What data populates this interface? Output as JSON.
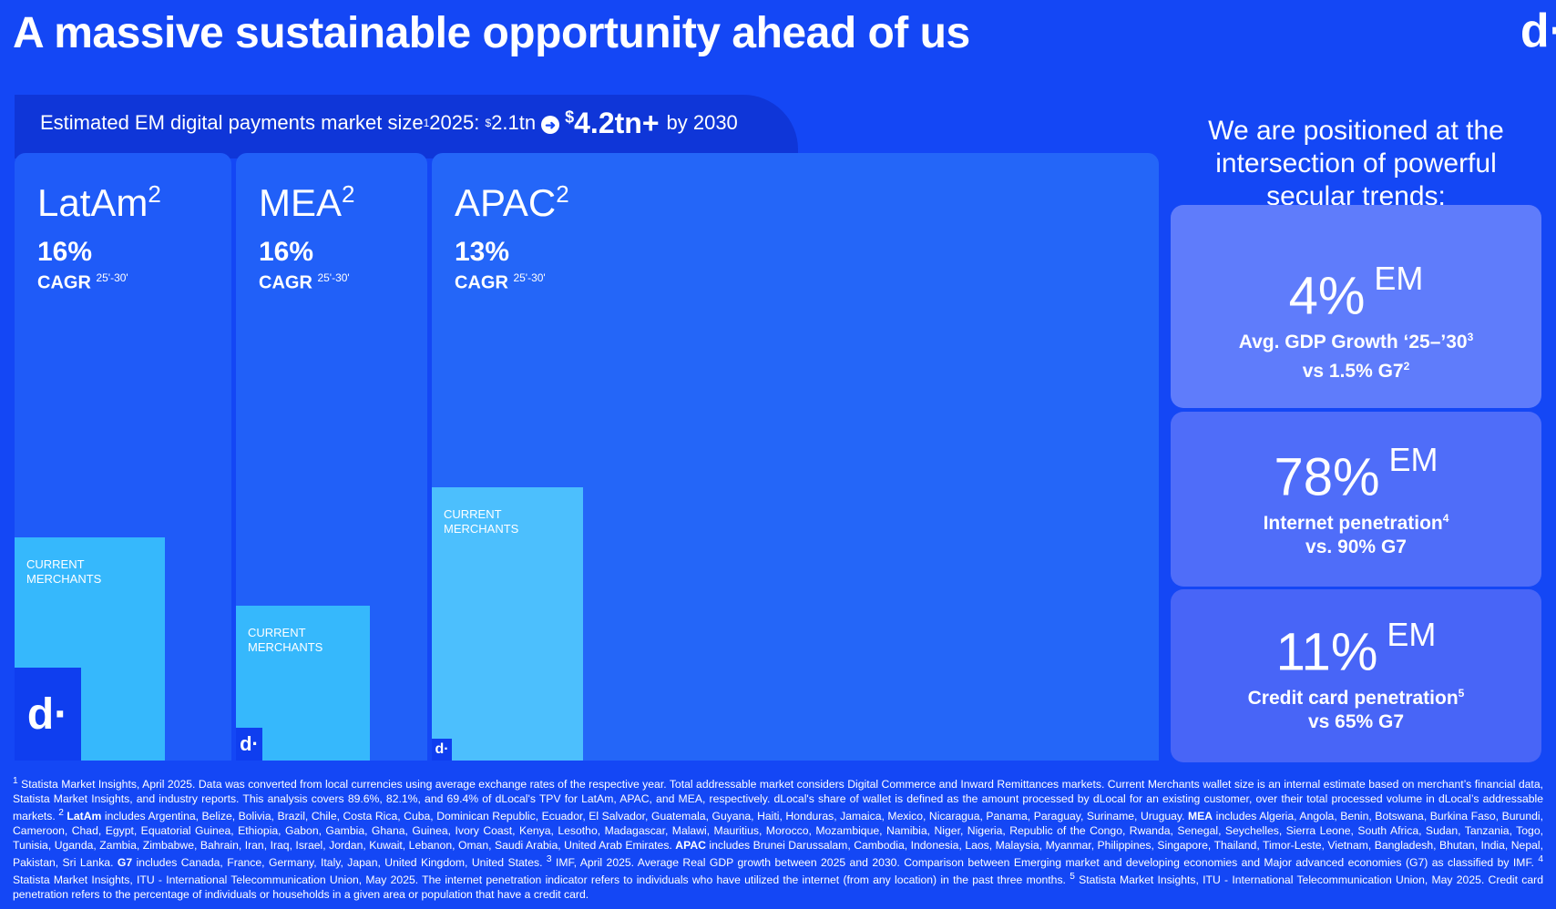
{
  "page": {
    "title": "A massive sustainable opportunity ahead of us",
    "logo": "d·"
  },
  "market": {
    "label": "Estimated EM digital payments market size",
    "label_sup": "1",
    "year": "2025:",
    "value_2025_sup": "$",
    "value_2025": "2.1tn",
    "arrow_icon": "arrow-right-circle-icon",
    "value_2030_sup": "$",
    "value_2030": "4.2tn+",
    "by_year": "by 2030"
  },
  "regions": [
    {
      "name": "LatAm",
      "name_sup": "2",
      "cagr": "16%",
      "cagr_label": "CAGR",
      "cagr_sup": "25'-30'",
      "merchants_label": "CURRENT MERCHANTS",
      "dlocal_logo": "d·"
    },
    {
      "name": "MEA",
      "name_sup": "2",
      "cagr": "16%",
      "cagr_label": "CAGR",
      "cagr_sup": "25'-30'",
      "merchants_label": "CURRENT MERCHANTS",
      "dlocal_logo": "d·"
    },
    {
      "name": "APAC",
      "name_sup": "2",
      "cagr": "13%",
      "cagr_label": "CAGR",
      "cagr_sup": "25'-30'",
      "merchants_label": "CURRENT MERCHANTS",
      "dlocal_logo": "d·"
    }
  ],
  "trends": {
    "heading": "We are positioned at the intersection of powerful secular trends:",
    "cards": [
      {
        "value": "4%",
        "qualifier": "EM",
        "line1": "Avg. GDP Growth ‘25–’30",
        "line1_sup": "3",
        "line2": "vs 1.5% G7",
        "line2_sup": "2"
      },
      {
        "value": "78%",
        "qualifier": "EM",
        "line1": "Internet penetration",
        "line1_sup": "4",
        "line2": "vs. 90% G7",
        "line2_sup": ""
      },
      {
        "value": "11%",
        "qualifier": "EM",
        "line1": "Credit card penetration",
        "line1_sup": "5",
        "line2": "vs 65% G7",
        "line2_sup": ""
      }
    ]
  },
  "footnote": {
    "n1": "1",
    "p1": " Statista Market Insights, April 2025. Data was converted from local currencies using average exchange rates of the respective year. Total addressable market considers Digital Commerce and Inward Remittances markets. Current Merchants wallet size is an internal estimate based on merchant’s financial data, Statista Market Insights, and industry reports. This analysis covers 89.6%, 82.1%, and 69.4% of dLocal's TPV for LatAm, APAC, and MEA, respectively. dLocal's share of wallet is defined as the amount processed by dLocal for an existing customer, over their total processed volume in dLocal’s addressable markets. ",
    "n2": "2",
    "latam_label": " LatAm",
    "latam_text": " includes Argentina, Belize, Bolivia, Brazil, Chile, Costa Rica, Cuba, Dominican Republic, Ecuador, El Salvador, Guatemala, Guyana, Haiti, Honduras, Jamaica, Mexico, Nicaragua, Panama, Paraguay, Suriname, Uruguay. ",
    "mea_label": "MEA",
    "mea_text": " includes Algeria, Angola, Benin, Botswana, Burkina Faso, Burundi, Cameroon, Chad, Egypt, Equatorial Guinea, Ethiopia, Gabon, Gambia, Ghana, Guinea, Ivory Coast, Kenya, Lesotho, Madagascar, Malawi, Mauritius, Morocco, Mozambique, Namibia, Niger, Nigeria, Republic of the Congo, Rwanda, Senegal, Seychelles, Sierra Leone, South Africa, Sudan, Tanzania, Togo, Tunisia, Uganda, Zambia, Zimbabwe, Bahrain, Iran, Iraq, Israel, Jordan, Kuwait, Lebanon, Oman, Saudi Arabia, United Arab Emirates. ",
    "apac_label": "APAC",
    "apac_text": " includes Brunei Darussalam, Cambodia, Indonesia, Laos, Malaysia, Myanmar, Philippines, Singapore, Thailand, Timor-Leste, Vietnam, Bangladesh, Bhutan, India, Nepal, Pakistan, Sri Lanka. ",
    "g7_label": "G7",
    "g7_text": " includes Canada, France, Germany, Italy, Japan, United Kingdom, United States. ",
    "n3": "3",
    "p3": " IMF, April 2025. Average Real GDP growth between 2025 and 2030. Comparison between Emerging market and developing economies and Major advanced economies (G7) as classified by IMF. ",
    "n4": "4",
    "p4": " Statista Market Insights, ITU - International Telecommunication Union, May 2025. The internet penetration indicator refers to individuals who have utilized the internet (from any location) in the past three months. ",
    "n5": "5",
    "p5": " Statista Market Insights, ITU - International Telecommunication Union, May 2025. Credit card penetration refers to the percentage of individuals or households in a given area or population that have a credit card."
  }
}
